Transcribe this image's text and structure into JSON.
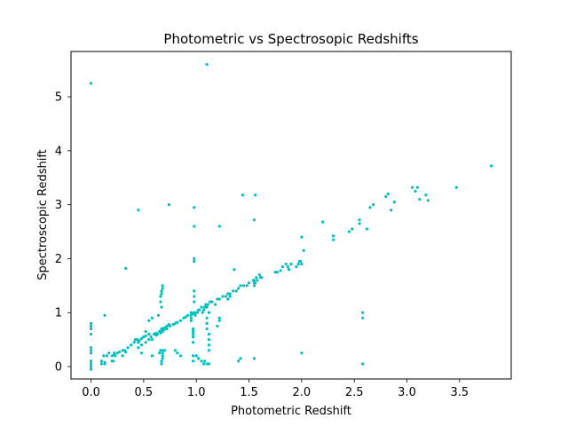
{
  "chart_data": {
    "type": "scatter",
    "title": "Photometric vs Spectrosopic Redshifts",
    "xlabel": "Photometric Redshift",
    "ylabel": "Spectroscopic Redshift",
    "xlim": [
      -0.19,
      3.99
    ],
    "ylim": [
      -0.23,
      5.84
    ],
    "xticks": [
      0.0,
      0.5,
      1.0,
      1.5,
      2.0,
      2.5,
      3.0,
      3.5
    ],
    "xtick_labels": [
      "0.0",
      "0.5",
      "1.0",
      "1.5",
      "2.0",
      "2.5",
      "3.0",
      "3.5"
    ],
    "yticks": [
      0,
      1,
      2,
      3,
      4,
      5
    ],
    "ytick_labels": [
      "0",
      "1",
      "2",
      "3",
      "4",
      "5"
    ],
    "grid": false,
    "marker_color": "#00bfbf",
    "series": [
      {
        "x": [
          0.0,
          0.0,
          0.0,
          0.0,
          0.0,
          0.0,
          0.0,
          0.0,
          0.0,
          0.0,
          0.0,
          0.12,
          0.15,
          0.1,
          0.13,
          0.17,
          0.2,
          0.22,
          0.25,
          0.27,
          0.3,
          0.22,
          0.32,
          0.35,
          0.23,
          0.2,
          0.21,
          0.13,
          0.33,
          0.38,
          0.41,
          0.44,
          0.45,
          0.46,
          0.48,
          0.5,
          0.52,
          0.55,
          0.57,
          0.6,
          0.62,
          0.63,
          0.65,
          0.66,
          0.67,
          0.68,
          0.7,
          0.72,
          0.74,
          0.45,
          0.48,
          0.52,
          0.55,
          0.58,
          0.62,
          0.66,
          0.68,
          0.69,
          0.7,
          0.72,
          0.75,
          0.78,
          0.8,
          0.82,
          0.85,
          0.88,
          0.9,
          0.92,
          0.95,
          0.97,
          0.98,
          0.99,
          1.0,
          1.01,
          1.02,
          1.03,
          1.05,
          1.06,
          1.07,
          1.08,
          1.09,
          1.1,
          1.11,
          1.12,
          1.13,
          1.15,
          1.18,
          1.2,
          1.22,
          1.25,
          1.28,
          1.3,
          1.32,
          1.35,
          1.38,
          1.4,
          1.42,
          1.45,
          1.48,
          1.5,
          1.55,
          1.57,
          1.58,
          1.6,
          1.62,
          1.56,
          1.54,
          1.61,
          1.75,
          1.77,
          1.8,
          1.82,
          1.85,
          1.87,
          1.88,
          1.9,
          1.95,
          1.97,
          1.98,
          2.0,
          2.0,
          1.99,
          2.02,
          2.2,
          2.3,
          2.3,
          2.45,
          2.48,
          2.55,
          2.55,
          2.62,
          2.65,
          2.68,
          2.8,
          2.82,
          2.85,
          2.88,
          3.05,
          3.08,
          3.1,
          3.12,
          3.18,
          3.2,
          3.47,
          3.8,
          0.98,
          0.98,
          0.98,
          0.98,
          0.98,
          0.98,
          0.98,
          0.95,
          0.95,
          0.95,
          0.97,
          0.97,
          0.97,
          1.1,
          1.1,
          1.1,
          1.12,
          1.12,
          1.12,
          1.12,
          1.2,
          1.22,
          1.22,
          1.3,
          1.32,
          1.36,
          1.55,
          1.55,
          0.68,
          0.68,
          0.67,
          0.67,
          0.66,
          0.66,
          0.67,
          0.64,
          0.58,
          0.55,
          0.52,
          0.42,
          0.45,
          0.7,
          0.48,
          0.8,
          0.82,
          0.85,
          0.68,
          0.68,
          0.68,
          0.68,
          0.67,
          0.67,
          0.66,
          0.65,
          0.58,
          0.3,
          0.2,
          0.13,
          0.1,
          1.0,
          1.02,
          1.05,
          1.08,
          1.1,
          1.12,
          1.07,
          1.4,
          1.42,
          2.58,
          2.58,
          2.58,
          1.55,
          2.0,
          0.0,
          1.1,
          0.45,
          0.74,
          1.44,
          1.56,
          1.55,
          0.97,
          0.97,
          1.22,
          0.97,
          0.97,
          0.33
        ],
        "y": [
          0.8,
          0.75,
          0.7,
          0.6,
          0.35,
          0.3,
          0.25,
          0.1,
          0.05,
          0.0,
          -0.05,
          0.2,
          0.2,
          0.1,
          0.05,
          0.25,
          0.2,
          0.22,
          0.25,
          0.27,
          0.3,
          0.25,
          0.3,
          0.35,
          0.2,
          0.1,
          0.1,
          0.95,
          0.27,
          0.4,
          0.45,
          0.5,
          0.45,
          0.48,
          0.52,
          0.55,
          0.57,
          0.6,
          0.55,
          0.6,
          0.62,
          0.6,
          0.65,
          0.65,
          0.7,
          0.7,
          0.72,
          0.75,
          0.78,
          0.35,
          0.4,
          0.45,
          0.5,
          0.5,
          0.58,
          0.62,
          0.65,
          0.68,
          0.7,
          0.7,
          0.75,
          0.78,
          0.8,
          0.82,
          0.85,
          0.9,
          0.92,
          0.95,
          1.0,
          0.98,
          1.0,
          0.95,
          1.0,
          1.0,
          1.05,
          1.05,
          1.1,
          1.0,
          1.05,
          1.1,
          1.15,
          1.1,
          1.15,
          1.0,
          1.2,
          1.2,
          1.15,
          1.25,
          1.25,
          1.3,
          1.3,
          1.35,
          1.35,
          1.4,
          1.4,
          1.45,
          1.5,
          1.5,
          1.5,
          1.55,
          1.6,
          1.65,
          1.6,
          1.7,
          1.65,
          1.55,
          1.6,
          1.65,
          1.75,
          1.75,
          1.78,
          1.85,
          1.9,
          1.85,
          1.8,
          1.9,
          1.85,
          1.9,
          1.95,
          1.9,
          2.4,
          1.95,
          2.15,
          2.68,
          2.35,
          2.42,
          2.5,
          2.55,
          2.65,
          2.72,
          2.55,
          2.95,
          3.0,
          3.15,
          3.2,
          2.9,
          3.05,
          3.32,
          3.25,
          3.32,
          3.1,
          3.18,
          3.08,
          3.32,
          3.72,
          2.95,
          2.6,
          2.0,
          1.95,
          1.4,
          1.3,
          1.2,
          0.95,
          0.9,
          0.85,
          0.7,
          0.6,
          0.55,
          0.9,
          0.8,
          0.7,
          0.6,
          0.5,
          0.4,
          0.3,
          0.75,
          0.9,
          0.85,
          1.25,
          1.3,
          1.8,
          1.55,
          1.5,
          1.5,
          1.45,
          1.4,
          1.35,
          1.3,
          1.2,
          1.1,
          0.95,
          0.9,
          0.85,
          0.65,
          0.5,
          0.45,
          0.3,
          0.25,
          0.3,
          0.25,
          0.2,
          0.3,
          0.25,
          0.2,
          0.15,
          0.1,
          0.05,
          0.3,
          0.25,
          0.2,
          0.2,
          0.1,
          0.08,
          0.05,
          0.2,
          0.15,
          0.1,
          0.1,
          0.05,
          0.05,
          0.05,
          0.1,
          0.15,
          1.0,
          0.9,
          0.05,
          0.15,
          0.25,
          5.25,
          5.6,
          2.9,
          3.0,
          3.18,
          3.18,
          2.72,
          0.2,
          0.1,
          2.6,
          0.65,
          0.45,
          1.82
        ]
      }
    ]
  }
}
